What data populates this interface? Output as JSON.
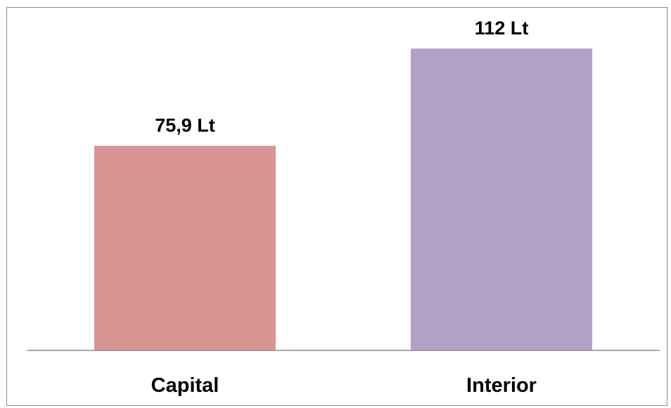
{
  "chart_data": {
    "type": "bar",
    "categories": [
      "Capital",
      "Interior"
    ],
    "values": [
      75.9,
      112
    ],
    "data_labels": [
      "75,9 Lt",
      "112 Lt"
    ],
    "title": "",
    "xlabel": "",
    "ylabel": "",
    "ylim": [
      0,
      120
    ],
    "grid": false,
    "legend": "none",
    "colors": [
      "#d99594",
      "#b2a1c7"
    ]
  }
}
